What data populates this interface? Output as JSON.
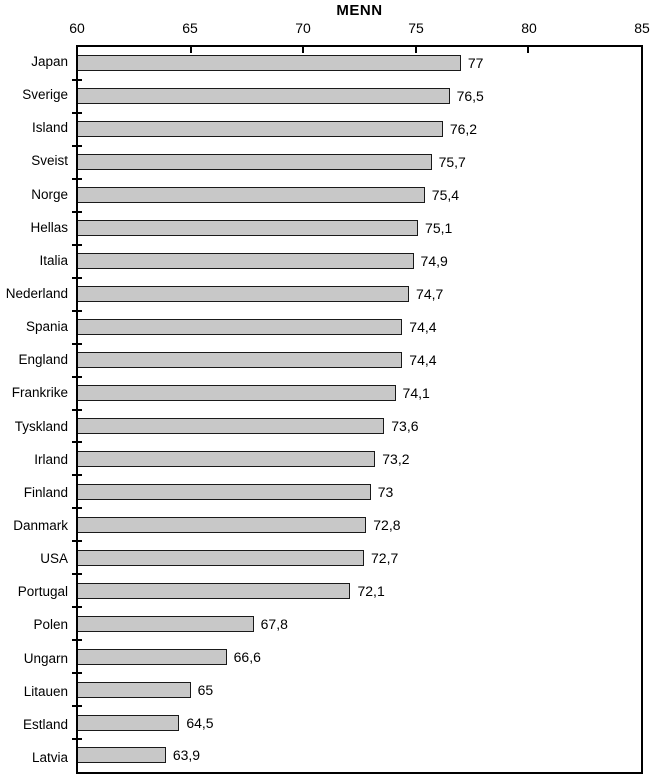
{
  "chart_data": {
    "type": "bar",
    "orientation": "horizontal",
    "title": "MENN",
    "categories": [
      "Japan",
      "Sverige",
      "Island",
      "Sveist",
      "Norge",
      "Hellas",
      "Italia",
      "Nederland",
      "Spania",
      "England",
      "Frankrike",
      "Tyskland",
      "Irland",
      "Finland",
      "Danmark",
      "USA",
      "Portugal",
      "Polen",
      "Ungarn",
      "Litauen",
      "Estland",
      "Latvia"
    ],
    "values": [
      77,
      76.5,
      76.2,
      75.7,
      75.4,
      75.1,
      74.9,
      74.7,
      74.4,
      74.4,
      74.1,
      73.6,
      73.2,
      73,
      72.8,
      72.7,
      72.1,
      67.8,
      66.6,
      65,
      64.5,
      63.9
    ],
    "value_labels": [
      "77",
      "76,5",
      "76,2",
      "75,7",
      "75,4",
      "75,1",
      "74,9",
      "74,7",
      "74,4",
      "74,4",
      "74,1",
      "73,6",
      "73,2",
      "73",
      "72,8",
      "72,7",
      "72,1",
      "67,8",
      "66,6",
      "65",
      "64,5",
      "63,9"
    ],
    "xlim": [
      60,
      85
    ],
    "x_ticks": [
      60,
      65,
      70,
      75,
      80,
      85
    ],
    "axis_position": "top",
    "grid": false,
    "legend": "none",
    "bar_fill": "#c8c8c8",
    "bar_border": "#1a1a1a",
    "xlabel": "",
    "ylabel": ""
  }
}
